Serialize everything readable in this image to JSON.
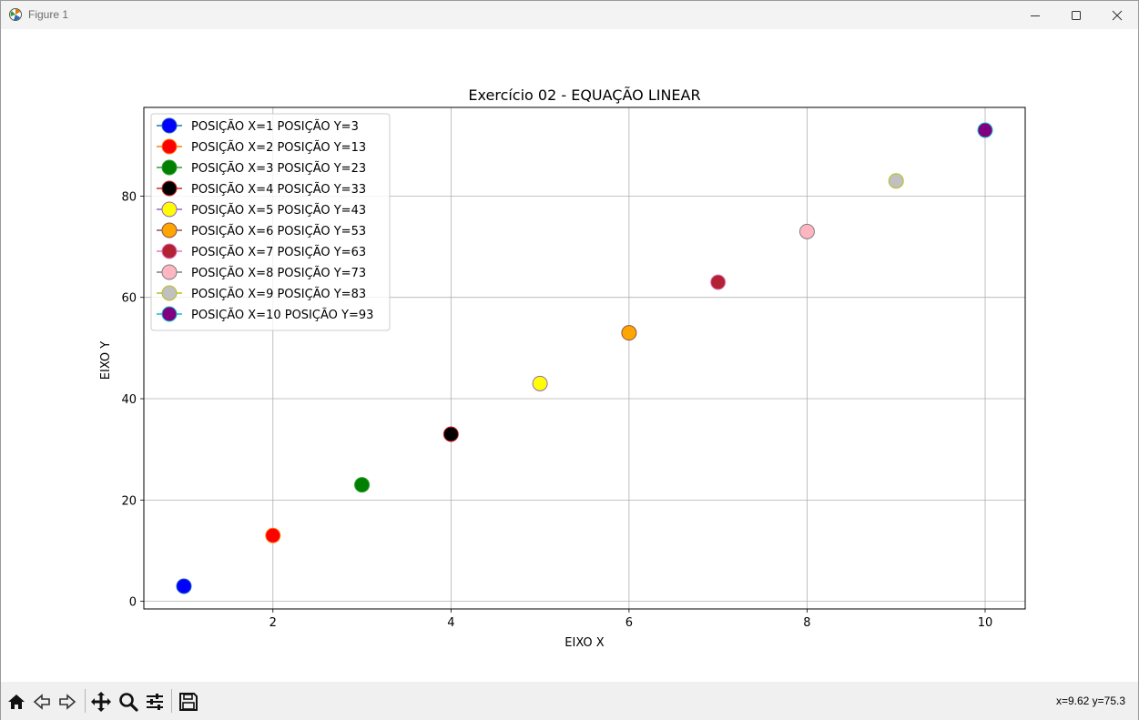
{
  "window": {
    "title": "Figure 1"
  },
  "toolbar": {
    "coords_text": "x=9.62 y=75.3",
    "buttons": [
      "home-icon",
      "back-arrow-icon",
      "forward-arrow-icon",
      "pan-icon",
      "zoom-icon",
      "configure-subplots-icon",
      "save-icon"
    ]
  },
  "chart_data": {
    "type": "scatter",
    "title": "Exercício 02 - EQUAÇÃO LINEAR",
    "xlabel": "EIXO X",
    "ylabel": "EIXO Y",
    "xlim": [
      0.55,
      10.45
    ],
    "ylim": [
      -1.5,
      97.5
    ],
    "xticks": [
      2,
      4,
      6,
      8,
      10
    ],
    "yticks": [
      0,
      20,
      40,
      60,
      80
    ],
    "grid": true,
    "legend_position": "upper-left",
    "series": [
      {
        "name": "POSIÇÃO X=1 POSIÇÃO Y=3",
        "x": 1,
        "y": 3,
        "face": "#0000ff",
        "edge": "#1f5fbf",
        "line": "#1f77b4"
      },
      {
        "name": "POSIÇÃO X=2 POSIÇÃO Y=13",
        "x": 2,
        "y": 13,
        "face": "#ff0000",
        "edge": "#ff7f0e",
        "line": "#ff7f0e"
      },
      {
        "name": "POSIÇÃO X=3 POSIÇÃO Y=23",
        "x": 3,
        "y": 23,
        "face": "#008000",
        "edge": "#2ca02c",
        "line": "#2ca02c"
      },
      {
        "name": "POSIÇÃO X=4 POSIÇÃO Y=33",
        "x": 4,
        "y": 33,
        "face": "#000000",
        "edge": "#d62728",
        "line": "#d62728"
      },
      {
        "name": "POSIÇÃO X=5 POSIÇÃO Y=43",
        "x": 5,
        "y": 43,
        "face": "#ffff00",
        "edge": "#9467bd",
        "line": "#9467bd"
      },
      {
        "name": "POSIÇÃO X=6 POSIÇÃO Y=53",
        "x": 6,
        "y": 53,
        "face": "#ffa500",
        "edge": "#8c564b",
        "line": "#8c564b"
      },
      {
        "name": "POSIÇÃO X=7 POSIÇÃO Y=63",
        "x": 7,
        "y": 63,
        "face": "#b22234",
        "edge": "#e377c2",
        "line": "#e377c2"
      },
      {
        "name": "POSIÇÃO X=8 POSIÇÃO Y=73",
        "x": 8,
        "y": 73,
        "face": "#ffb6c1",
        "edge": "#7f7f7f",
        "line": "#7f7f7f"
      },
      {
        "name": "POSIÇÃO X=9 POSIÇÃO Y=83",
        "x": 9,
        "y": 83,
        "face": "#c0c0c0",
        "edge": "#bcbd22",
        "line": "#bcbd22"
      },
      {
        "name": "POSIÇÃO X=10 POSIÇÃO Y=93",
        "x": 10,
        "y": 93,
        "face": "#800080",
        "edge": "#17becf",
        "line": "#17becf"
      }
    ]
  }
}
